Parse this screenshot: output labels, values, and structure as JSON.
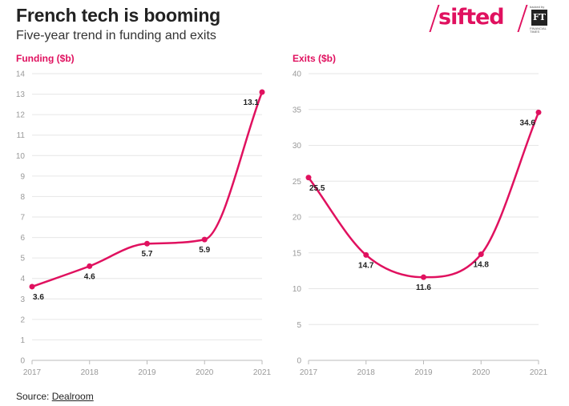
{
  "header": {
    "title": "French tech is booming",
    "subtitle": "Five-year trend in funding and exits"
  },
  "brand": {
    "logo_text": "sifted",
    "ft_mark": "FT",
    "ft_caption_top": "backed by",
    "ft_caption_bottom": "FINANCIAL TIMES",
    "accent_color": "#e0115f"
  },
  "footer": {
    "source_label": "Source:",
    "source_link": "Dealroom"
  },
  "chart_data": [
    {
      "type": "line",
      "ylabel": "Funding ($b)",
      "x": [
        "2017",
        "2018",
        "2019",
        "2020",
        "2021"
      ],
      "values": [
        3.6,
        4.6,
        5.7,
        5.9,
        13.1
      ],
      "data_labels": [
        "3.6",
        "4.6",
        "5.7",
        "5.9",
        "13.1"
      ],
      "ylim": [
        0,
        14
      ],
      "yticks": [
        0,
        1,
        2,
        3,
        4,
        5,
        6,
        7,
        8,
        9,
        10,
        11,
        12,
        13,
        14
      ],
      "grid": "horizontal",
      "line_color": "#e0115f"
    },
    {
      "type": "line",
      "ylabel": "Exits ($b)",
      "x": [
        "2017",
        "2018",
        "2019",
        "2020",
        "2021"
      ],
      "values": [
        25.5,
        14.7,
        11.6,
        14.8,
        34.6
      ],
      "data_labels": [
        "25.5",
        "14.7",
        "11.6",
        "14.8",
        "34.6"
      ],
      "ylim": [
        0,
        40
      ],
      "yticks": [
        0,
        5,
        10,
        15,
        20,
        25,
        30,
        35,
        40
      ],
      "grid": "horizontal",
      "line_color": "#e0115f"
    }
  ]
}
